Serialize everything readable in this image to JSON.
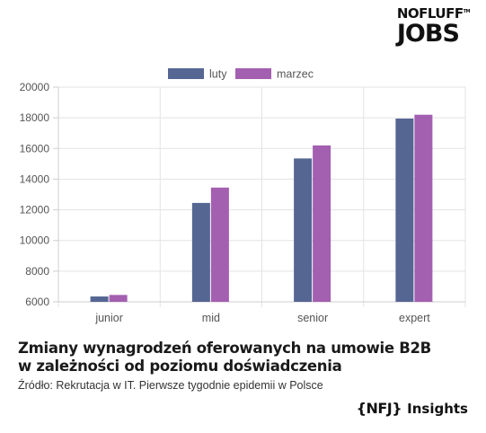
{
  "logo": {
    "top_text": "NOFLUFF",
    "bottom_text": "JOBS"
  },
  "chart_data": {
    "type": "bar",
    "categories": [
      "junior",
      "mid",
      "senior",
      "expert"
    ],
    "series": [
      {
        "name": "luty",
        "values": [
          6350,
          12450,
          15350,
          17950
        ],
        "color": "#566693"
      },
      {
        "name": "marzec",
        "values": [
          6450,
          13450,
          16200,
          18200
        ],
        "color": "#a35fb0"
      }
    ],
    "ylim": [
      6000,
      20000
    ],
    "yticks": [
      6000,
      8000,
      10000,
      12000,
      14000,
      16000,
      18000,
      20000
    ],
    "grid": true,
    "legend": "top-center",
    "xlabel": "",
    "ylabel": ""
  },
  "caption": {
    "title": "Zmiany wynagrodzeń oferowanych na umowie B2B w zależności od poziomu doświadczenia",
    "source": "Źródło: Rekrutacja w IT. Pierwsze tygodnie epidemii w Polsce"
  },
  "brand": {
    "mark": "{NFJ}",
    "label": "Insights"
  }
}
